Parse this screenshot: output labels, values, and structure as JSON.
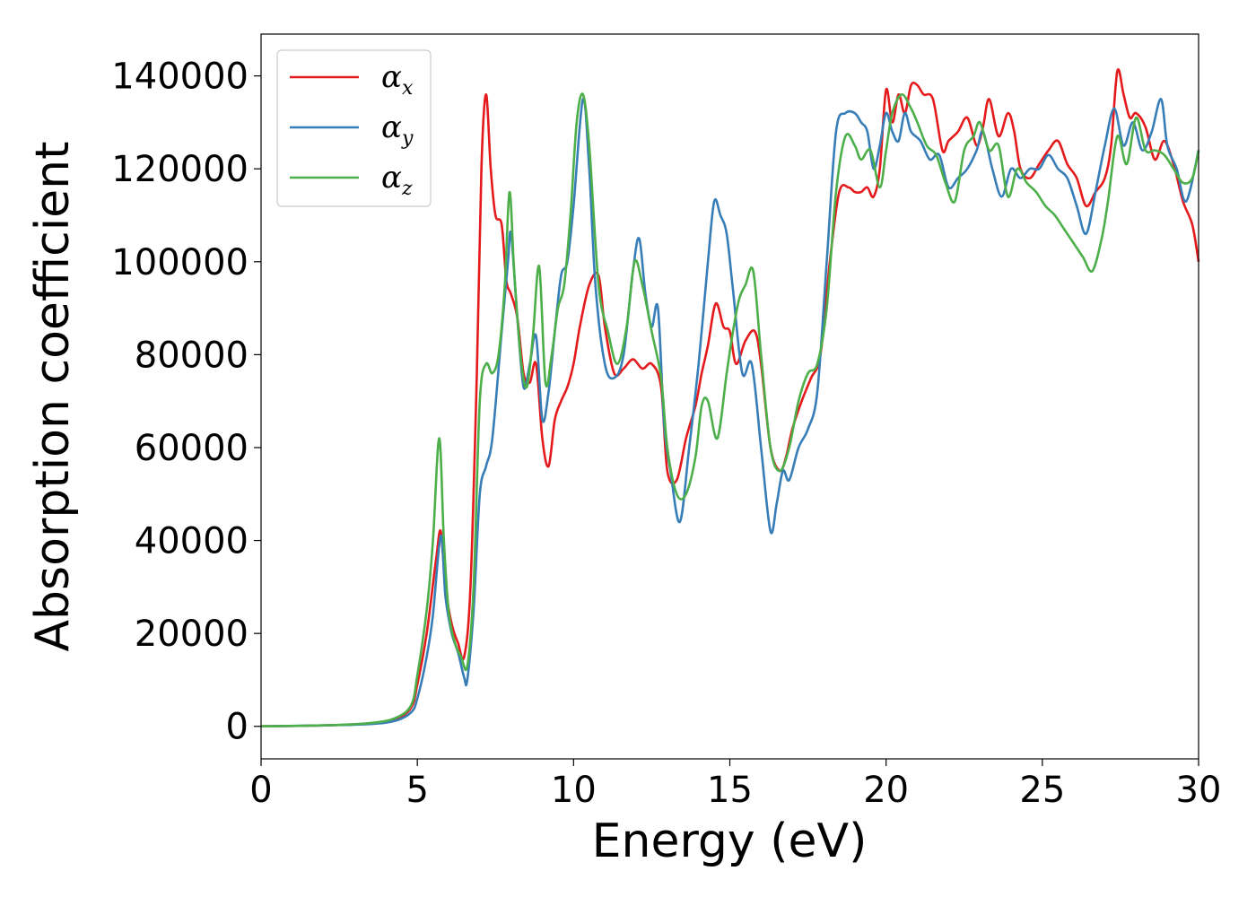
{
  "chart_data": {
    "type": "line",
    "title": "",
    "xlabel": "Energy (eV)",
    "ylabel": "Absorption coefficient",
    "xlim": [
      0,
      30
    ],
    "ylim": [
      -7000,
      149000
    ],
    "xticks": [
      0,
      5,
      10,
      15,
      20,
      25,
      30
    ],
    "yticks": [
      0,
      20000,
      40000,
      60000,
      80000,
      100000,
      120000,
      140000
    ],
    "grid": false,
    "legend": {
      "placement": "top-left"
    },
    "series": [
      {
        "name": "α",
        "subscript": "x",
        "color": "#e41a1c",
        "x": [
          0,
          2,
          3.5,
          4.3,
          4.8,
          5.0,
          5.3,
          5.6,
          5.75,
          5.9,
          6.1,
          6.3,
          6.5,
          6.7,
          6.9,
          7.05,
          7.2,
          7.35,
          7.5,
          7.7,
          7.85,
          8.0,
          8.2,
          8.4,
          8.6,
          8.8,
          9.0,
          9.2,
          9.4,
          9.6,
          9.8,
          10.0,
          10.2,
          10.5,
          10.8,
          11.0,
          11.3,
          11.6,
          11.9,
          12.2,
          12.5,
          12.8,
          13.0,
          13.3,
          13.6,
          13.9,
          14.1,
          14.3,
          14.55,
          14.8,
          15.0,
          15.2,
          15.5,
          15.8,
          16.0,
          16.3,
          16.6,
          16.8,
          17.0,
          17.3,
          17.6,
          17.9,
          18.2,
          18.5,
          18.8,
          19.0,
          19.2,
          19.4,
          19.6,
          19.8,
          20.0,
          20.2,
          20.4,
          20.6,
          20.8,
          21.0,
          21.2,
          21.5,
          21.8,
          22.0,
          22.3,
          22.6,
          22.9,
          23.1,
          23.3,
          23.6,
          23.9,
          24.1,
          24.3,
          24.6,
          24.9,
          25.2,
          25.5,
          25.8,
          26.1,
          26.4,
          26.7,
          27.0,
          27.2,
          27.4,
          27.6,
          27.8,
          28.0,
          28.3,
          28.6,
          28.9,
          29.2,
          29.5,
          29.8,
          30.0
        ],
        "values": [
          0,
          200,
          600,
          1500,
          4000,
          9000,
          20000,
          36000,
          42000,
          30000,
          22000,
          18000,
          15000,
          30000,
          75000,
          120000,
          136000,
          120000,
          110000,
          108000,
          96000,
          93000,
          88000,
          76000,
          74000,
          78000,
          62000,
          56000,
          66000,
          70000,
          73000,
          78000,
          86000,
          95000,
          97000,
          86000,
          76000,
          77000,
          79000,
          77000,
          78000,
          73000,
          55000,
          53000,
          62000,
          69000,
          76000,
          82000,
          91000,
          86000,
          85000,
          78000,
          83000,
          85000,
          78000,
          60000,
          55000,
          58000,
          64000,
          70000,
          75000,
          80000,
          100000,
          115000,
          116000,
          115000,
          115000,
          116000,
          114000,
          120000,
          137000,
          130000,
          136000,
          132000,
          138000,
          138000,
          136000,
          135000,
          124000,
          126000,
          128000,
          131000,
          125000,
          129000,
          135000,
          127000,
          132000,
          128000,
          120000,
          118000,
          121000,
          124000,
          126000,
          121000,
          118000,
          112000,
          115000,
          118000,
          125000,
          141000,
          136000,
          131000,
          132000,
          129000,
          122000,
          126000,
          121000,
          113000,
          108000,
          100000
        ]
      },
      {
        "name": "α",
        "subscript": "y",
        "color": "#377eb8",
        "x": [
          0,
          2,
          3.5,
          4.3,
          4.8,
          5.0,
          5.3,
          5.5,
          5.75,
          5.9,
          6.1,
          6.3,
          6.5,
          6.6,
          6.8,
          7.0,
          7.2,
          7.4,
          7.7,
          7.9,
          8.0,
          8.2,
          8.4,
          8.6,
          8.8,
          9.0,
          9.2,
          9.4,
          9.6,
          9.8,
          10.0,
          10.3,
          10.5,
          10.7,
          11.0,
          11.3,
          11.6,
          11.9,
          12.1,
          12.3,
          12.5,
          12.7,
          12.9,
          13.1,
          13.4,
          13.7,
          14.0,
          14.3,
          14.5,
          14.7,
          14.9,
          15.1,
          15.4,
          15.7,
          16.0,
          16.3,
          16.5,
          16.7,
          16.9,
          17.2,
          17.5,
          17.8,
          18.1,
          18.4,
          18.7,
          19.0,
          19.2,
          19.4,
          19.6,
          19.8,
          20.0,
          20.2,
          20.4,
          20.6,
          20.8,
          21.1,
          21.4,
          21.7,
          22.0,
          22.3,
          22.6,
          22.9,
          23.1,
          23.4,
          23.7,
          24.0,
          24.3,
          24.6,
          24.9,
          25.2,
          25.5,
          25.8,
          26.1,
          26.4,
          26.7,
          27.0,
          27.3,
          27.6,
          27.9,
          28.2,
          28.5,
          28.8,
          29.0,
          29.3,
          29.6,
          30.0
        ],
        "values": [
          0,
          200,
          500,
          1200,
          3000,
          6000,
          15000,
          24000,
          41000,
          28000,
          20000,
          16000,
          10500,
          10000,
          25000,
          50000,
          56000,
          62000,
          85000,
          100000,
          106000,
          88000,
          73000,
          78000,
          84000,
          66000,
          72000,
          85000,
          97000,
          100000,
          112000,
          135000,
          120000,
          95000,
          78000,
          75000,
          80000,
          98000,
          105000,
          93000,
          86000,
          90000,
          65000,
          55000,
          44000,
          60000,
          78000,
          100000,
          113000,
          110000,
          106000,
          94000,
          76000,
          78000,
          60000,
          42000,
          48000,
          55000,
          53000,
          60000,
          64000,
          72000,
          100000,
          128000,
          132000,
          132000,
          130000,
          128000,
          120000,
          125000,
          132000,
          128000,
          126000,
          132000,
          128000,
          126000,
          122000,
          123000,
          116000,
          118000,
          120000,
          124000,
          128000,
          120000,
          114000,
          120000,
          118000,
          120000,
          120000,
          123000,
          120000,
          118000,
          112000,
          106000,
          115000,
          125000,
          133000,
          125000,
          130000,
          124000,
          128000,
          135000,
          125000,
          120000,
          113000,
          124000
        ]
      },
      {
        "name": "α",
        "subscript": "z",
        "color": "#4daf4a",
        "x": [
          0,
          2,
          3.5,
          4.3,
          4.8,
          5.0,
          5.3,
          5.5,
          5.7,
          5.85,
          6.0,
          6.2,
          6.4,
          6.6,
          6.8,
          7.0,
          7.2,
          7.4,
          7.6,
          7.8,
          7.95,
          8.1,
          8.3,
          8.5,
          8.7,
          8.9,
          9.1,
          9.3,
          9.5,
          9.7,
          9.9,
          10.1,
          10.3,
          10.5,
          10.8,
          11.1,
          11.4,
          11.7,
          11.95,
          12.2,
          12.5,
          12.8,
          13.0,
          13.3,
          13.6,
          13.9,
          14.1,
          14.3,
          14.6,
          14.9,
          15.1,
          15.3,
          15.5,
          15.75,
          16.0,
          16.3,
          16.6,
          16.9,
          17.2,
          17.5,
          17.8,
          18.1,
          18.4,
          18.7,
          19.0,
          19.2,
          19.5,
          19.8,
          20.0,
          20.2,
          20.5,
          20.8,
          21.0,
          21.3,
          21.6,
          21.9,
          22.2,
          22.5,
          22.8,
          23.0,
          23.3,
          23.6,
          23.9,
          24.2,
          24.5,
          24.8,
          25.1,
          25.4,
          25.7,
          26.0,
          26.3,
          26.6,
          26.9,
          27.1,
          27.4,
          27.7,
          28.0,
          28.3,
          28.6,
          28.9,
          29.2,
          29.5,
          29.8,
          30.0
        ],
        "values": [
          0,
          200,
          700,
          1800,
          4500,
          11000,
          25000,
          40000,
          62000,
          40000,
          25000,
          18000,
          15000,
          13000,
          30000,
          70000,
          78000,
          76000,
          80000,
          95000,
          115000,
          98000,
          80000,
          73000,
          84000,
          99000,
          74000,
          80000,
          90000,
          95000,
          110000,
          130000,
          136000,
          125000,
          95000,
          85000,
          78000,
          86000,
          100000,
          95000,
          85000,
          75000,
          60000,
          50000,
          50000,
          58000,
          69000,
          70000,
          62000,
          76000,
          85000,
          92000,
          95000,
          98000,
          80000,
          60000,
          55000,
          60000,
          70000,
          76000,
          78000,
          90000,
          115000,
          127000,
          125000,
          122000,
          124000,
          116000,
          124000,
          132000,
          136000,
          133000,
          130000,
          125000,
          123000,
          117000,
          113000,
          124000,
          127000,
          130000,
          124000,
          125000,
          114000,
          120000,
          117000,
          115000,
          112000,
          110000,
          107000,
          104000,
          101000,
          98000,
          105000,
          113000,
          127000,
          121000,
          131000,
          124000,
          124000,
          123000,
          120000,
          117000,
          118000,
          124000
        ]
      }
    ]
  }
}
